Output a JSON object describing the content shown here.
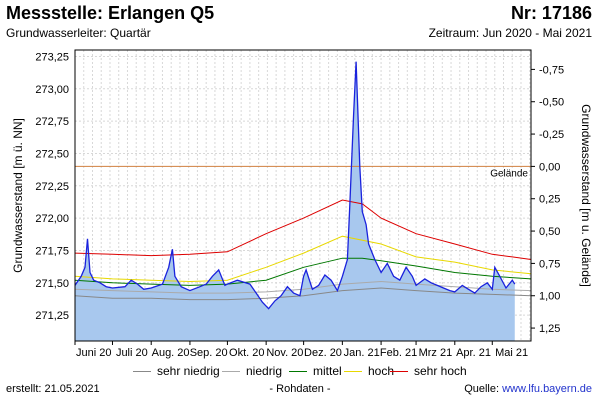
{
  "header": {
    "station": "Messstelle: Erlangen Q5",
    "number": "Nr: 17186",
    "aquifer": "Grundwasserleiter: Quartär",
    "period": "Zeitraum: Jun 2020 - Mai 2021"
  },
  "footer": {
    "created": "erstellt:  21.05.2021",
    "data_type": "- Rohdaten -",
    "source_label": "Quelle: ",
    "source_url": "www.lfu.bayern.de"
  },
  "colors": {
    "fill": "#a8c8ee",
    "level": "#1a22dd",
    "sehr_niedrig": "#888888",
    "niedrig": "#aaaaaa",
    "mittel": "#007700",
    "hoch": "#e8d800",
    "sehr_hoch": "#dd0000",
    "gelaende": "#d08040",
    "grid": "#d8d8d8"
  },
  "chart_data": {
    "type": "line",
    "ylabel": "Grundwasserstand [m ü. NN]",
    "ylabel_right": "Grundwasserstand [m u. Gelände]",
    "ylim": [
      271.05,
      273.3
    ],
    "yticks": [
      271.25,
      271.5,
      271.75,
      272.0,
      272.25,
      272.5,
      272.75,
      273.0,
      273.25
    ],
    "yticklabels": [
      "271,25",
      "271,50",
      "271,75",
      "272,00",
      "272,25",
      "272,50",
      "272,75",
      "273,00",
      "273,25"
    ],
    "right_ticks": [
      -0.75,
      -0.5,
      -0.25,
      0.0,
      0.25,
      0.5,
      0.75,
      1.0,
      1.25
    ],
    "right_ticklabels": [
      "-0,75",
      "-0,50",
      "-0,25",
      "0,00",
      "0,25",
      "0,50",
      "0,75",
      "1,00",
      "1,25"
    ],
    "gelaende": {
      "label": "Gelände",
      "value": 272.4
    },
    "xlim": [
      0,
      365
    ],
    "month_labels": [
      "Juni 20",
      "Juli 20",
      "Aug. 20",
      "Sep. 20",
      "Okt. 20",
      "Nov. 20",
      "Dez. 20",
      "Jan. 21",
      "Feb. 21",
      "Mrz 21",
      "Apr. 21",
      "Mai 21"
    ],
    "month_days": [
      0,
      30,
      61,
      92,
      122,
      153,
      183,
      214,
      245,
      273,
      304,
      334
    ],
    "series": [
      {
        "name": "sehr niedrig",
        "key": "sehr_niedrig",
        "x": [
          0,
          30,
          61,
          92,
          122,
          153,
          183,
          214,
          245,
          273,
          304,
          334,
          365
        ],
        "y": [
          271.4,
          271.38,
          271.38,
          271.37,
          271.37,
          271.38,
          271.4,
          271.44,
          271.46,
          271.44,
          271.42,
          271.41,
          271.4
        ]
      },
      {
        "name": "niedrig",
        "key": "niedrig",
        "x": [
          0,
          30,
          61,
          92,
          122,
          153,
          183,
          214,
          245,
          273,
          304,
          334,
          365
        ],
        "y": [
          271.45,
          271.44,
          271.43,
          271.42,
          271.42,
          271.43,
          271.45,
          271.49,
          271.51,
          271.49,
          271.47,
          271.45,
          271.44
        ]
      },
      {
        "name": "mittel",
        "key": "mittel",
        "x": [
          0,
          30,
          61,
          92,
          122,
          153,
          183,
          214,
          230,
          245,
          273,
          304,
          334,
          365
        ],
        "y": [
          271.52,
          271.5,
          271.49,
          271.48,
          271.49,
          271.52,
          271.62,
          271.69,
          271.69,
          271.67,
          271.63,
          271.58,
          271.55,
          271.53
        ]
      },
      {
        "name": "hoch",
        "key": "hoch",
        "x": [
          0,
          30,
          61,
          92,
          122,
          153,
          183,
          214,
          245,
          273,
          304,
          334,
          365
        ],
        "y": [
          271.55,
          271.53,
          271.52,
          271.51,
          271.52,
          271.62,
          271.73,
          271.86,
          271.8,
          271.7,
          271.66,
          271.6,
          271.57
        ]
      },
      {
        "name": "sehr hoch",
        "key": "sehr_hoch",
        "x": [
          0,
          30,
          61,
          92,
          122,
          153,
          183,
          214,
          230,
          245,
          273,
          304,
          334,
          350,
          365
        ],
        "y": [
          271.73,
          271.72,
          271.71,
          271.72,
          271.74,
          271.88,
          272.0,
          272.14,
          272.11,
          272.0,
          271.88,
          271.8,
          271.72,
          271.7,
          271.68
        ]
      }
    ],
    "level": {
      "name": "Grundwasserstand",
      "x": [
        0,
        5,
        8,
        10,
        12,
        15,
        20,
        25,
        30,
        40,
        45,
        50,
        55,
        61,
        70,
        75,
        78,
        80,
        85,
        92,
        100,
        105,
        110,
        115,
        120,
        122,
        130,
        140,
        145,
        150,
        155,
        160,
        165,
        170,
        175,
        180,
        183,
        185,
        190,
        195,
        200,
        205,
        210,
        214,
        218,
        220,
        223,
        225,
        228,
        230,
        233,
        235,
        240,
        245,
        250,
        255,
        260,
        265,
        270,
        273,
        280,
        285,
        290,
        295,
        300,
        304,
        310,
        315,
        320,
        325,
        330,
        334,
        336,
        340,
        345,
        350,
        352
      ],
      "y": [
        271.48,
        271.55,
        271.62,
        271.84,
        271.58,
        271.52,
        271.5,
        271.47,
        271.46,
        271.47,
        271.52,
        271.49,
        271.45,
        271.46,
        271.49,
        271.62,
        271.76,
        271.55,
        271.47,
        271.44,
        271.47,
        271.49,
        271.55,
        271.6,
        271.48,
        271.49,
        271.52,
        271.49,
        271.42,
        271.35,
        271.3,
        271.36,
        271.4,
        271.47,
        271.42,
        271.4,
        271.55,
        271.6,
        271.45,
        271.48,
        271.56,
        271.52,
        271.44,
        271.55,
        271.68,
        272.1,
        272.8,
        273.21,
        272.4,
        272.05,
        271.95,
        271.8,
        271.68,
        271.58,
        271.65,
        271.55,
        271.52,
        271.62,
        271.55,
        271.48,
        271.53,
        271.5,
        271.48,
        271.46,
        271.44,
        271.43,
        271.48,
        271.45,
        271.42,
        271.47,
        271.5,
        271.45,
        271.62,
        271.55,
        271.46,
        271.52,
        271.49
      ]
    }
  },
  "legend": [
    {
      "label": "sehr niedrig",
      "key": "sehr_niedrig",
      "x": 133
    },
    {
      "label": "niedrig",
      "key": "niedrig",
      "x": 222
    },
    {
      "label": "mittel",
      "key": "mittel",
      "x": 289
    },
    {
      "label": "hoch",
      "key": "hoch",
      "x": 344
    },
    {
      "label": "sehr hoch",
      "key": "sehr_hoch",
      "x": 390
    }
  ]
}
